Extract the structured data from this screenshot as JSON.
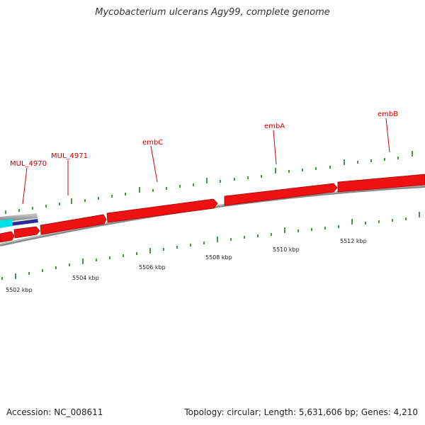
{
  "title": "Mycobacterium ulcerans Agy99, complete genome",
  "footer": {
    "accession": "Accession: NC_008611",
    "topology": "Topology: circular; Length: 5,631,606 bp; Genes: 4,210"
  },
  "genes": [
    {
      "name": "MUL_4970"
    },
    {
      "name": "MUL_4971"
    },
    {
      "name": "embC"
    },
    {
      "name": "embA"
    },
    {
      "name": "embB"
    }
  ],
  "scale_labels": [
    "5502 kbp",
    "5504 kbp",
    "5506 kbp",
    "5508 kbp",
    "5510 kbp",
    "5512 kbp"
  ],
  "colors": {
    "gene_fill": "#ee1111",
    "gene_shadow": "#990000",
    "backbone": "#888888",
    "tick": "#1f7a1f",
    "label": "#cc0000",
    "cyan_feature": "#00e5ee",
    "blue_feature": "#2222aa"
  }
}
